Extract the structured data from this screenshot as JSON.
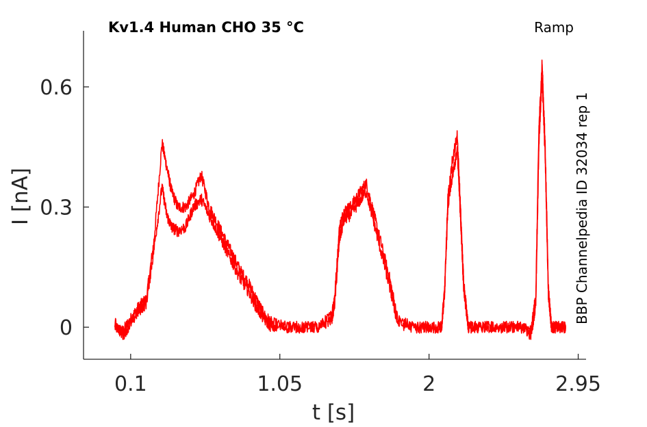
{
  "chart_data": {
    "type": "line",
    "title": "Kv1.4  Human  CHO  35 °C",
    "protocol_label": "Ramp",
    "side_label": "BBP Channelpedia ID 32034 rep 1",
    "xlabel": "t [s]",
    "ylabel": "I [nA]",
    "xlim": [
      -0.2,
      3.0
    ],
    "ylim": [
      -0.08,
      0.74
    ],
    "x_ticks": [
      0.1,
      1.05,
      2,
      2.95
    ],
    "x_tick_labels": [
      "0.1",
      "1.05",
      "2",
      "2.95"
    ],
    "y_ticks": [
      0,
      0.3,
      0.6
    ],
    "y_tick_labels": [
      "0",
      "0.3",
      "0.6"
    ],
    "grid": false,
    "line_color": "#ff0000",
    "series": [
      {
        "x": [
          0.0,
          0.05,
          0.1,
          0.15,
          0.2,
          0.25,
          0.3,
          0.33,
          0.36,
          0.4,
          0.45,
          0.5,
          0.55,
          0.6,
          0.65,
          0.7,
          0.75,
          0.8,
          0.85,
          0.9,
          0.95,
          1.0,
          1.1,
          1.2,
          1.3,
          1.38,
          1.4,
          1.43,
          1.46,
          1.5,
          1.55,
          1.6,
          1.65,
          1.7,
          1.75,
          1.8,
          1.9,
          2.0,
          2.08,
          2.1,
          2.12,
          2.15,
          2.18,
          2.2,
          2.22,
          2.25,
          2.3,
          2.4,
          2.5,
          2.6,
          2.65,
          2.68,
          2.7,
          2.72,
          2.74,
          2.76,
          2.78,
          2.82,
          2.87
        ],
        "y": [
          0.0,
          -0.01,
          0.02,
          0.05,
          0.07,
          0.22,
          0.46,
          0.4,
          0.34,
          0.3,
          0.3,
          0.33,
          0.38,
          0.3,
          0.26,
          0.22,
          0.18,
          0.14,
          0.11,
          0.07,
          0.03,
          0.01,
          0.0,
          0.0,
          0.0,
          0.03,
          0.08,
          0.25,
          0.29,
          0.3,
          0.33,
          0.36,
          0.28,
          0.2,
          0.12,
          0.02,
          0.0,
          0.0,
          0.0,
          0.1,
          0.32,
          0.42,
          0.48,
          0.3,
          0.12,
          0.0,
          0.0,
          0.0,
          0.0,
          0.0,
          -0.01,
          0.08,
          0.5,
          0.66,
          0.45,
          0.1,
          0.0,
          0.0,
          0.0
        ]
      },
      {
        "x": [
          0.0,
          0.05,
          0.1,
          0.15,
          0.2,
          0.25,
          0.3,
          0.33,
          0.36,
          0.4,
          0.45,
          0.5,
          0.55,
          0.6,
          0.65,
          0.7,
          0.75,
          0.8,
          0.85,
          0.9,
          0.95,
          1.0,
          1.1,
          1.2,
          1.3,
          1.38,
          1.4,
          1.43,
          1.46,
          1.5,
          1.55,
          1.6,
          1.65,
          1.7,
          1.75,
          1.8,
          1.9,
          2.0,
          2.08,
          2.1,
          2.12,
          2.15,
          2.18,
          2.2,
          2.22,
          2.25,
          2.3,
          2.4,
          2.5,
          2.6,
          2.65,
          2.68,
          2.7,
          2.72,
          2.74,
          2.76,
          2.78,
          2.82,
          2.87
        ],
        "y": [
          0.01,
          -0.02,
          0.01,
          0.04,
          0.06,
          0.2,
          0.35,
          0.28,
          0.25,
          0.24,
          0.25,
          0.3,
          0.32,
          0.28,
          0.24,
          0.2,
          0.16,
          0.12,
          0.09,
          0.05,
          0.02,
          0.0,
          0.0,
          0.0,
          0.0,
          0.02,
          0.06,
          0.22,
          0.27,
          0.28,
          0.31,
          0.34,
          0.26,
          0.18,
          0.1,
          0.01,
          0.0,
          0.0,
          0.0,
          0.09,
          0.3,
          0.38,
          0.44,
          0.28,
          0.1,
          0.0,
          0.0,
          0.0,
          0.0,
          0.0,
          -0.02,
          0.06,
          0.46,
          0.62,
          0.42,
          0.08,
          0.0,
          0.0,
          0.0
        ]
      }
    ]
  }
}
